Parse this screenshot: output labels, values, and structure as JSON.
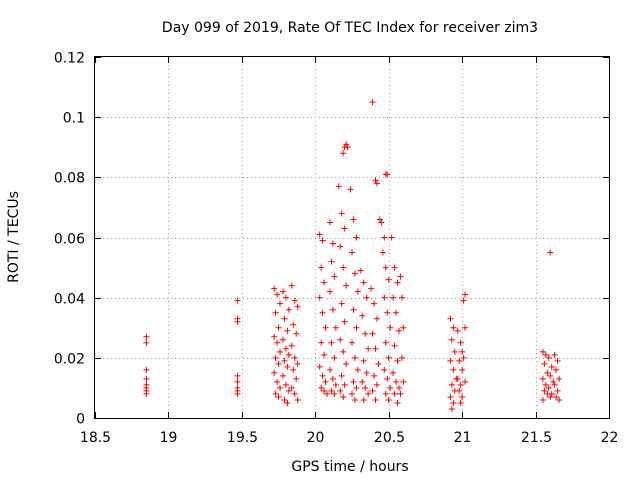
{
  "chart_data": {
    "type": "scatter",
    "title": "Day 099 of 2019, Rate Of TEC Index for receiver zim3",
    "xlabel": "GPS time / hours",
    "ylabel": "ROTI / TECUs",
    "xlim": [
      18.5,
      22
    ],
    "ylim": [
      0,
      0.12
    ],
    "grid": true,
    "x_ticks": [
      {
        "value": 18.5,
        "label": "18.5"
      },
      {
        "value": 19,
        "label": "19"
      },
      {
        "value": 19.5,
        "label": "19.5"
      },
      {
        "value": 20,
        "label": "20"
      },
      {
        "value": 20.5,
        "label": "20.5"
      },
      {
        "value": 21,
        "label": "21"
      },
      {
        "value": 21.5,
        "label": "21.5"
      },
      {
        "value": 22,
        "label": "22"
      }
    ],
    "y_ticks": [
      {
        "value": 0,
        "label": "0"
      },
      {
        "value": 0.02,
        "label": "0.02"
      },
      {
        "value": 0.04,
        "label": "0.04"
      },
      {
        "value": 0.06,
        "label": "0.06"
      },
      {
        "value": 0.08,
        "label": "0.08"
      },
      {
        "value": 0.1,
        "label": "0.1"
      },
      {
        "value": 0.12,
        "label": "0.12"
      }
    ],
    "marker": "+",
    "color": "#ff0000",
    "series": [
      {
        "name": "ROTI",
        "points": [
          [
            18.85,
            0.027
          ],
          [
            18.85,
            0.025
          ],
          [
            18.85,
            0.016
          ],
          [
            18.85,
            0.013
          ],
          [
            18.85,
            0.011
          ],
          [
            18.85,
            0.01
          ],
          [
            18.85,
            0.009
          ],
          [
            18.85,
            0.008
          ],
          [
            19.47,
            0.039
          ],
          [
            19.47,
            0.033
          ],
          [
            19.47,
            0.032
          ],
          [
            19.47,
            0.014
          ],
          [
            19.47,
            0.012
          ],
          [
            19.47,
            0.01
          ],
          [
            19.47,
            0.009
          ],
          [
            19.47,
            0.008
          ],
          [
            19.72,
            0.043
          ],
          [
            19.74,
            0.041
          ],
          [
            19.76,
            0.038
          ],
          [
            19.73,
            0.035
          ],
          [
            19.75,
            0.03
          ],
          [
            19.72,
            0.027
          ],
          [
            19.74,
            0.025
          ],
          [
            19.76,
            0.022
          ],
          [
            19.73,
            0.02
          ],
          [
            19.75,
            0.018
          ],
          [
            19.72,
            0.015
          ],
          [
            19.74,
            0.012
          ],
          [
            19.76,
            0.01
          ],
          [
            19.73,
            0.008
          ],
          [
            19.75,
            0.007
          ],
          [
            19.78,
            0.042
          ],
          [
            19.8,
            0.04
          ],
          [
            19.82,
            0.036
          ],
          [
            19.79,
            0.033
          ],
          [
            19.81,
            0.029
          ],
          [
            19.78,
            0.026
          ],
          [
            19.8,
            0.023
          ],
          [
            19.82,
            0.021
          ],
          [
            19.79,
            0.019
          ],
          [
            19.81,
            0.017
          ],
          [
            19.78,
            0.014
          ],
          [
            19.8,
            0.011
          ],
          [
            19.82,
            0.009
          ],
          [
            19.79,
            0.006
          ],
          [
            19.81,
            0.005
          ],
          [
            19.84,
            0.044
          ],
          [
            19.86,
            0.039
          ],
          [
            19.88,
            0.037
          ],
          [
            19.85,
            0.031
          ],
          [
            19.87,
            0.028
          ],
          [
            19.84,
            0.024
          ],
          [
            19.86,
            0.02
          ],
          [
            19.88,
            0.018
          ],
          [
            19.85,
            0.016
          ],
          [
            19.87,
            0.013
          ],
          [
            19.84,
            0.01
          ],
          [
            19.86,
            0.008
          ],
          [
            19.88,
            0.006
          ],
          [
            20.03,
            0.061
          ],
          [
            20.05,
            0.059
          ],
          [
            20.04,
            0.05
          ],
          [
            20.06,
            0.045
          ],
          [
            20.03,
            0.04
          ],
          [
            20.05,
            0.035
          ],
          [
            20.07,
            0.03
          ],
          [
            20.04,
            0.025
          ],
          [
            20.06,
            0.021
          ],
          [
            20.03,
            0.017
          ],
          [
            20.05,
            0.014
          ],
          [
            20.07,
            0.012
          ],
          [
            20.04,
            0.01
          ],
          [
            20.06,
            0.009
          ],
          [
            20.08,
            0.008
          ],
          [
            20.1,
            0.065
          ],
          [
            20.12,
            0.058
          ],
          [
            20.11,
            0.052
          ],
          [
            20.13,
            0.047
          ],
          [
            20.1,
            0.042
          ],
          [
            20.12,
            0.036
          ],
          [
            20.14,
            0.03
          ],
          [
            20.11,
            0.025
          ],
          [
            20.13,
            0.02
          ],
          [
            20.1,
            0.016
          ],
          [
            20.12,
            0.013
          ],
          [
            20.14,
            0.011
          ],
          [
            20.11,
            0.009
          ],
          [
            20.13,
            0.008
          ],
          [
            20.16,
            0.077
          ],
          [
            20.18,
            0.068
          ],
          [
            20.2,
            0.063
          ],
          [
            20.17,
            0.057
          ],
          [
            20.19,
            0.05
          ],
          [
            20.21,
            0.044
          ],
          [
            20.18,
            0.038
          ],
          [
            20.2,
            0.032
          ],
          [
            20.17,
            0.026
          ],
          [
            20.19,
            0.022
          ],
          [
            20.21,
            0.018
          ],
          [
            20.18,
            0.014
          ],
          [
            20.2,
            0.011
          ],
          [
            20.17,
            0.009
          ],
          [
            20.19,
            0.007
          ],
          [
            20.19,
            0.088
          ],
          [
            20.2,
            0.09
          ],
          [
            20.21,
            0.091
          ],
          [
            20.22,
            0.09
          ],
          [
            20.24,
            0.076
          ],
          [
            20.26,
            0.066
          ],
          [
            20.28,
            0.06
          ],
          [
            20.25,
            0.055
          ],
          [
            20.27,
            0.048
          ],
          [
            20.29,
            0.042
          ],
          [
            20.26,
            0.036
          ],
          [
            20.28,
            0.03
          ],
          [
            20.25,
            0.025
          ],
          [
            20.27,
            0.02
          ],
          [
            20.29,
            0.016
          ],
          [
            20.26,
            0.012
          ],
          [
            20.28,
            0.01
          ],
          [
            20.25,
            0.008
          ],
          [
            20.27,
            0.006
          ],
          [
            20.31,
            0.049
          ],
          [
            20.33,
            0.045
          ],
          [
            20.35,
            0.04
          ],
          [
            20.32,
            0.034
          ],
          [
            20.34,
            0.028
          ],
          [
            20.36,
            0.023
          ],
          [
            20.33,
            0.019
          ],
          [
            20.35,
            0.015
          ],
          [
            20.32,
            0.012
          ],
          [
            20.34,
            0.01
          ],
          [
            20.36,
            0.008
          ],
          [
            20.33,
            0.006
          ],
          [
            20.39,
            0.105
          ],
          [
            20.41,
            0.079
          ],
          [
            20.42,
            0.078
          ],
          [
            20.38,
            0.043
          ],
          [
            20.4,
            0.038
          ],
          [
            20.42,
            0.033
          ],
          [
            20.39,
            0.028
          ],
          [
            20.41,
            0.023
          ],
          [
            20.43,
            0.018
          ],
          [
            20.4,
            0.014
          ],
          [
            20.42,
            0.011
          ],
          [
            20.39,
            0.009
          ],
          [
            20.41,
            0.006
          ],
          [
            20.44,
            0.066
          ],
          [
            20.45,
            0.065
          ],
          [
            20.47,
            0.06
          ],
          [
            20.48,
            0.081
          ],
          [
            20.49,
            0.081
          ],
          [
            20.46,
            0.055
          ],
          [
            20.48,
            0.05
          ],
          [
            20.5,
            0.046
          ],
          [
            20.47,
            0.04
          ],
          [
            20.49,
            0.035
          ],
          [
            20.51,
            0.03
          ],
          [
            20.48,
            0.025
          ],
          [
            20.5,
            0.02
          ],
          [
            20.47,
            0.016
          ],
          [
            20.49,
            0.013
          ],
          [
            20.51,
            0.01
          ],
          [
            20.48,
            0.008
          ],
          [
            20.5,
            0.006
          ],
          [
            20.52,
            0.06
          ],
          [
            20.54,
            0.05
          ],
          [
            20.56,
            0.045
          ],
          [
            20.53,
            0.04
          ],
          [
            20.55,
            0.035
          ],
          [
            20.57,
            0.029
          ],
          [
            20.54,
            0.024
          ],
          [
            20.56,
            0.019
          ],
          [
            20.53,
            0.015
          ],
          [
            20.55,
            0.012
          ],
          [
            20.57,
            0.01
          ],
          [
            20.54,
            0.008
          ],
          [
            20.56,
            0.005
          ],
          [
            20.58,
            0.047
          ],
          [
            20.59,
            0.04
          ],
          [
            20.6,
            0.03
          ],
          [
            20.59,
            0.02
          ],
          [
            20.6,
            0.012
          ],
          [
            20.58,
            0.008
          ],
          [
            20.92,
            0.033
          ],
          [
            20.94,
            0.03
          ],
          [
            20.93,
            0.026
          ],
          [
            20.95,
            0.022
          ],
          [
            20.92,
            0.019
          ],
          [
            20.94,
            0.016
          ],
          [
            20.96,
            0.013
          ],
          [
            20.93,
            0.011
          ],
          [
            20.95,
            0.009
          ],
          [
            20.92,
            0.007
          ],
          [
            20.94,
            0.005
          ],
          [
            20.93,
            0.003
          ],
          [
            20.97,
            0.029
          ],
          [
            20.99,
            0.025
          ],
          [
            21.0,
            0.022
          ],
          [
            20.98,
            0.019
          ],
          [
            21.0,
            0.016
          ],
          [
            20.97,
            0.013
          ],
          [
            20.99,
            0.011
          ],
          [
            20.98,
            0.009
          ],
          [
            21.0,
            0.007
          ],
          [
            20.99,
            0.005
          ],
          [
            21.02,
            0.041
          ],
          [
            21.01,
            0.039
          ],
          [
            21.02,
            0.03
          ],
          [
            21.01,
            0.02
          ],
          [
            21.02,
            0.012
          ],
          [
            21.55,
            0.022
          ],
          [
            21.57,
            0.021
          ],
          [
            21.56,
            0.018
          ],
          [
            21.58,
            0.015
          ],
          [
            21.55,
            0.013
          ],
          [
            21.57,
            0.011
          ],
          [
            21.56,
            0.009
          ],
          [
            21.58,
            0.008
          ],
          [
            21.55,
            0.006
          ],
          [
            21.6,
            0.055
          ],
          [
            21.59,
            0.02
          ],
          [
            21.61,
            0.017
          ],
          [
            21.6,
            0.014
          ],
          [
            21.62,
            0.012
          ],
          [
            21.59,
            0.01
          ],
          [
            21.61,
            0.008
          ],
          [
            21.6,
            0.007
          ],
          [
            21.63,
            0.021
          ],
          [
            21.65,
            0.019
          ],
          [
            21.64,
            0.016
          ],
          [
            21.66,
            0.013
          ],
          [
            21.63,
            0.011
          ],
          [
            21.65,
            0.009
          ],
          [
            21.64,
            0.007
          ],
          [
            21.66,
            0.006
          ]
        ]
      }
    ]
  }
}
